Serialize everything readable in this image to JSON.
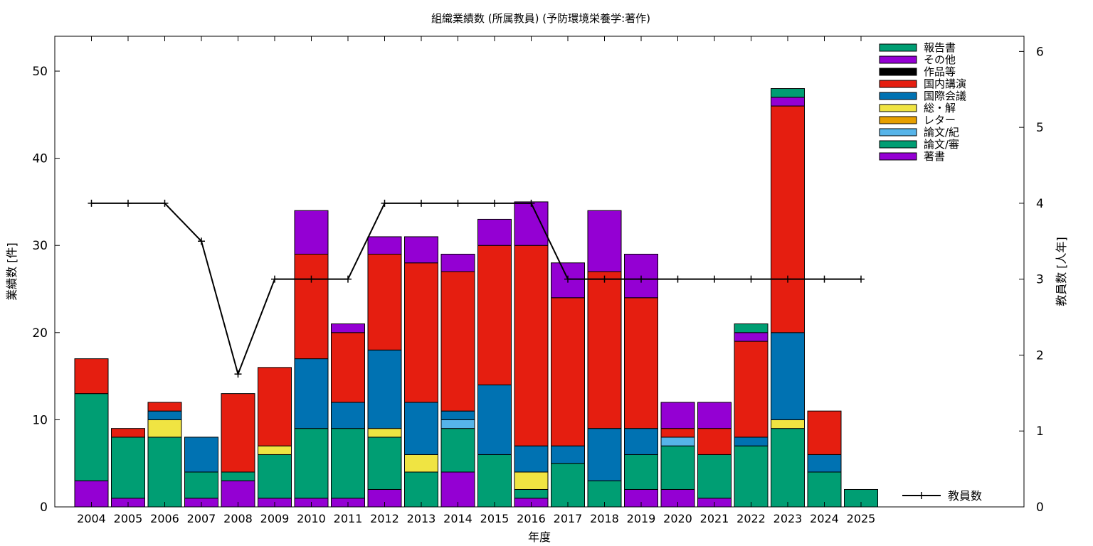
{
  "chart_data": {
    "type": "bar",
    "title": "組織業績数 (所属教員) (予防環境栄養学:著作)",
    "xlabel": "年度",
    "ylabel": "業績数 [件]",
    "y2label": "教員数 [人年]",
    "ylim": [
      0,
      54
    ],
    "y2lim": [
      0,
      6.2
    ],
    "yticks": [
      0,
      10,
      20,
      30,
      40,
      50
    ],
    "y2ticks": [
      0,
      1,
      2,
      3,
      4,
      5,
      6
    ],
    "stacked": true,
    "grid": false,
    "legend_position": "top-right",
    "categories": [
      "2004",
      "2005",
      "2006",
      "2007",
      "2008",
      "2009",
      "2010",
      "2011",
      "2012",
      "2013",
      "2014",
      "2015",
      "2016",
      "2017",
      "2018",
      "2019",
      "2020",
      "2021",
      "2022",
      "2023",
      "2024",
      "2025"
    ],
    "series": [
      {
        "name": "著書",
        "color": "#9400d3",
        "values": [
          3,
          1,
          0,
          1,
          3,
          1,
          1,
          1,
          2,
          0,
          4,
          0,
          1,
          0,
          0,
          2,
          2,
          1,
          0,
          0,
          0,
          0
        ]
      },
      {
        "name": "論文/審",
        "color": "#009e73",
        "values": [
          10,
          7,
          8,
          3,
          1,
          5,
          8,
          8,
          6,
          4,
          5,
          6,
          1,
          5,
          3,
          4,
          5,
          5,
          7,
          9,
          4,
          2
        ]
      },
      {
        "name": "論文/紀",
        "color": "#56b4e9",
        "values": [
          0,
          0,
          0,
          0,
          0,
          0,
          0,
          0,
          0,
          0,
          1,
          0,
          0,
          0,
          0,
          0,
          1,
          0,
          0,
          0,
          0,
          0
        ]
      },
      {
        "name": "レター",
        "color": "#e69f00",
        "values": [
          0,
          0,
          0,
          0,
          0,
          0,
          0,
          0,
          0,
          0,
          0,
          0,
          0,
          0,
          0,
          0,
          0,
          0,
          0,
          0,
          0,
          0
        ]
      },
      {
        "name": "総・解",
        "color": "#f0e442",
        "values": [
          0,
          0,
          2,
          0,
          0,
          1,
          0,
          0,
          1,
          2,
          0,
          0,
          2,
          0,
          0,
          0,
          0,
          0,
          0,
          1,
          0,
          0
        ]
      },
      {
        "name": "国際会議",
        "color": "#0072b2",
        "values": [
          0,
          0,
          1,
          4,
          0,
          0,
          8,
          3,
          9,
          6,
          1,
          8,
          3,
          2,
          6,
          3,
          0,
          0,
          1,
          10,
          2,
          0
        ]
      },
      {
        "name": "国内講演",
        "color": "#e51e10",
        "values": [
          4,
          1,
          1,
          0,
          9,
          9,
          12,
          8,
          11,
          16,
          16,
          16,
          23,
          17,
          18,
          15,
          1,
          3,
          11,
          26,
          5,
          0
        ]
      },
      {
        "name": "作品等",
        "color": "#000000",
        "values": [
          0,
          0,
          0,
          0,
          0,
          0,
          0,
          0,
          0,
          0,
          0,
          0,
          0,
          0,
          0,
          0,
          0,
          0,
          0,
          0,
          0,
          0
        ]
      },
      {
        "name": "その他",
        "color": "#9400d3",
        "values": [
          0,
          0,
          0,
          0,
          0,
          0,
          5,
          1,
          2,
          3,
          2,
          3,
          5,
          4,
          7,
          5,
          3,
          3,
          1,
          1,
          0,
          0
        ]
      },
      {
        "name": "報告書",
        "color": "#009e73",
        "values": [
          0,
          0,
          0,
          0,
          0,
          0,
          0,
          0,
          0,
          0,
          0,
          0,
          0,
          0,
          0,
          0,
          0,
          0,
          1,
          1,
          0,
          0
        ]
      }
    ],
    "line_series": {
      "name": "教員数",
      "color": "#000000",
      "axis": "right",
      "values": [
        4,
        4,
        4,
        3.5,
        1.75,
        3,
        3,
        3,
        4,
        4,
        4,
        4,
        4,
        3,
        3,
        3,
        3,
        3,
        3,
        3,
        3,
        3
      ]
    }
  }
}
